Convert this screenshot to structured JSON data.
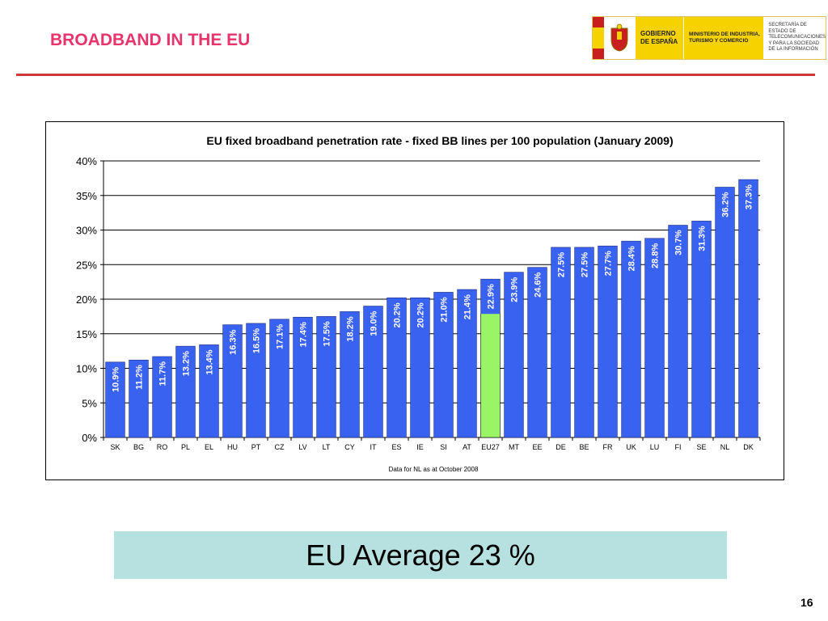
{
  "page": {
    "title": "BROADBAND IN THE EU",
    "logo": {
      "gov_text": "GOBIERNO DE ESPAÑA",
      "ministry_text": "MINISTERIO DE INDUSTRIA, TURISMO Y COMERCIO",
      "secretariat_text": "SECRETARÍA DE ESTADO DE TELECOMUNICACIONES Y PARA LA SOCIEDAD DE LA INFORMACIÓN"
    },
    "average_text": "EU Average 23 %",
    "page_number": "16"
  },
  "colors": {
    "title": "#e8336b",
    "rule": "#d1363c",
    "bar": "#3a62f0",
    "highlight_bar": "#99f466",
    "average_box": "#b7e0e0"
  },
  "chart_data": {
    "type": "bar",
    "title": "EU fixed broadband penetration rate - fixed BB lines per 100 population (January 2009)",
    "xlabel": "",
    "ylabel": "",
    "footnote": "Data for NL as at October 2008",
    "ylim": [
      0,
      40
    ],
    "yticks": [
      "0%",
      "5%",
      "10%",
      "15%",
      "20%",
      "25%",
      "30%",
      "35%",
      "40%"
    ],
    "grid": true,
    "legend": "none",
    "categories": [
      "SK",
      "BG",
      "RO",
      "PL",
      "EL",
      "HU",
      "PT",
      "CZ",
      "LV",
      "LT",
      "CY",
      "IT",
      "ES",
      "IE",
      "SI",
      "AT",
      "EU27",
      "MT",
      "EE",
      "DE",
      "BE",
      "FR",
      "UK",
      "LU",
      "FI",
      "SE",
      "NL",
      "DK"
    ],
    "values": [
      10.9,
      11.2,
      11.7,
      13.2,
      13.4,
      16.3,
      16.5,
      17.1,
      17.4,
      17.5,
      18.2,
      19.0,
      20.2,
      20.2,
      21.0,
      21.4,
      22.9,
      23.9,
      24.6,
      27.5,
      27.5,
      27.7,
      28.4,
      28.8,
      30.7,
      31.3,
      36.2,
      37.3
    ],
    "labels": [
      "10.9%",
      "11.2%",
      "11.7%",
      "13.2%",
      "13.4%",
      "16.3%",
      "16.5%",
      "17.1%",
      "17.4%",
      "17.5%",
      "18.2%",
      "19.0%",
      "20.2%",
      "20.2%",
      "21.0%",
      "21.4%",
      "22.9%",
      "23.9%",
      "24.6%",
      "27.5%",
      "27.5%",
      "27.7%",
      "28.4%",
      "28.8%",
      "30.7%",
      "31.3%",
      "36.2%",
      "37.3%"
    ],
    "highlight_category": "EU27"
  }
}
